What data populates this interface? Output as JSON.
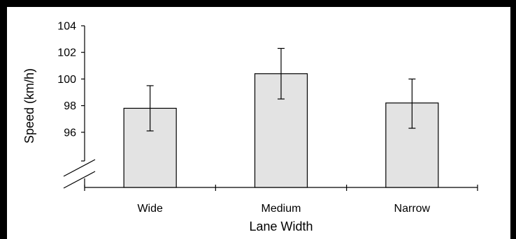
{
  "chart_data": {
    "type": "bar",
    "title": "",
    "xlabel": "Lane Width",
    "ylabel": "Speed (km/h)",
    "categories": [
      "Wide",
      "Medium",
      "Narrow"
    ],
    "values": [
      97.8,
      100.4,
      98.2
    ],
    "error_low": [
      96.1,
      98.5,
      96.3
    ],
    "error_high": [
      99.5,
      102.3,
      100.0
    ],
    "ylim": [
      94,
      104
    ],
    "yticks": [
      "104",
      "102",
      "100",
      "98",
      "96"
    ],
    "axis_break": true,
    "grid": false,
    "bar_color": "#e3e3e3",
    "bar_edge_color": "#000000"
  }
}
